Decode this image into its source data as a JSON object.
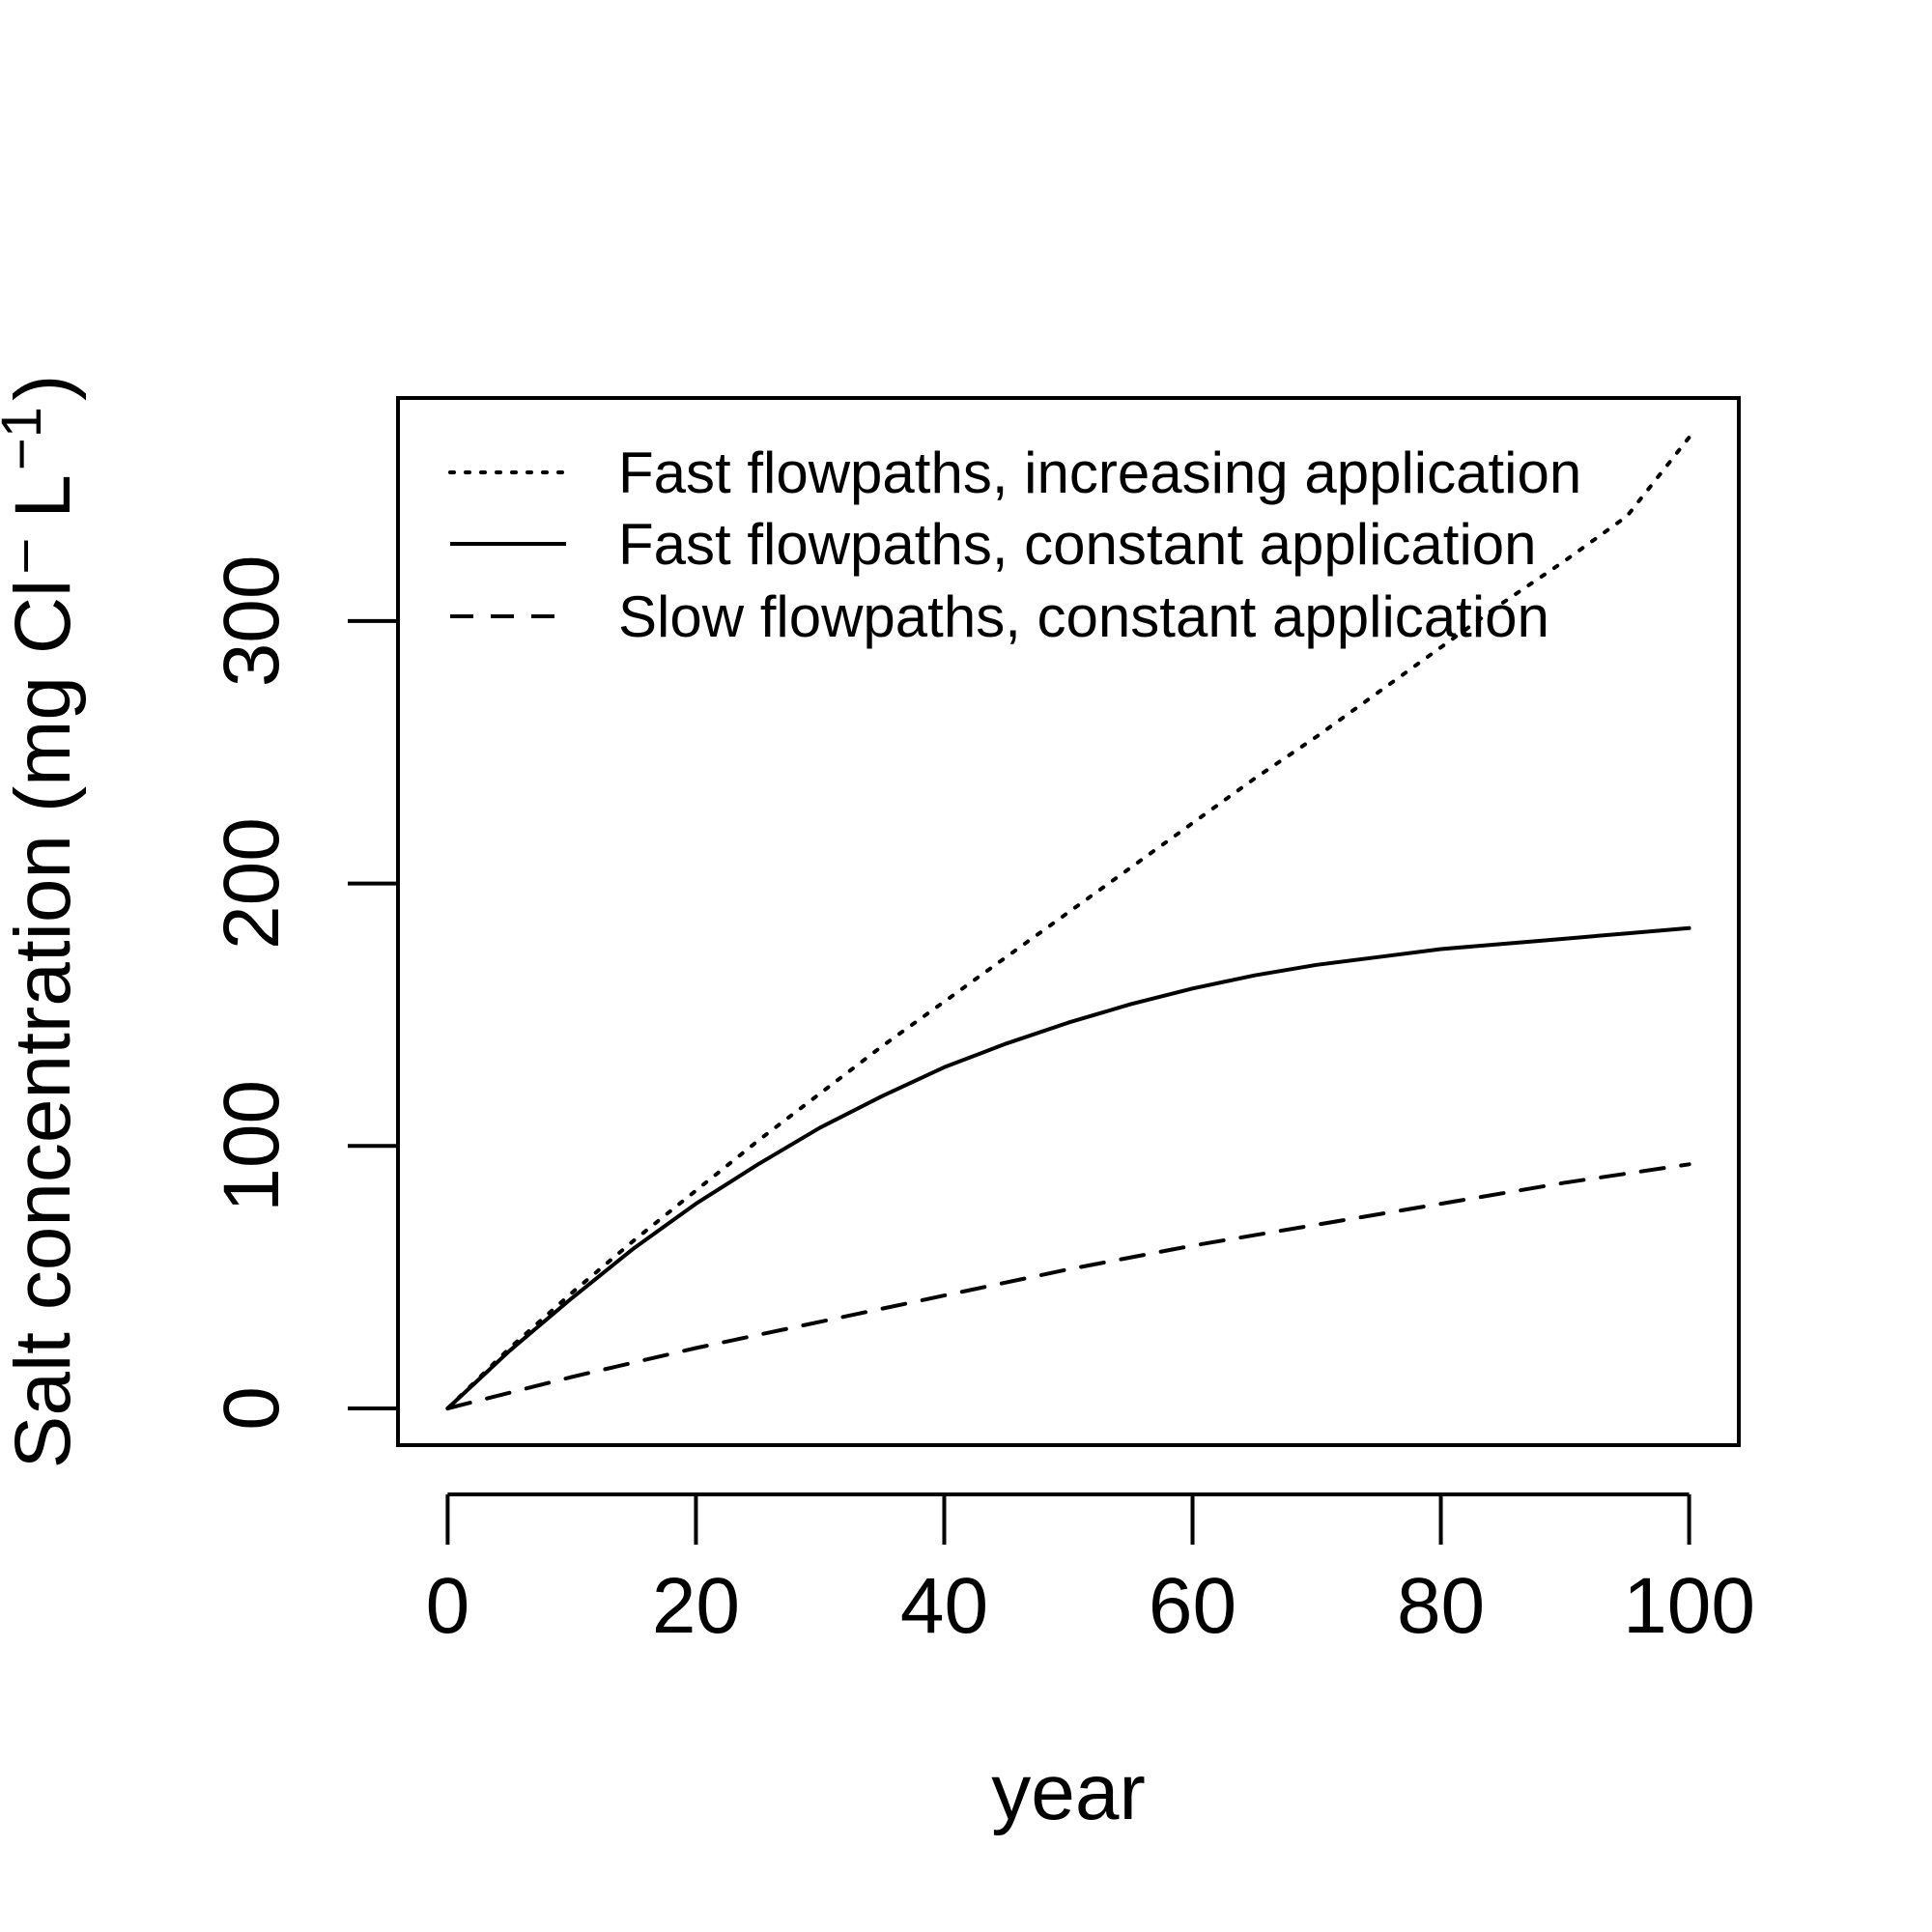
{
  "chart_data": {
    "type": "line",
    "title": "",
    "xlabel": "year",
    "ylabel": {
      "prefix": "Salt concentration (mg Cl",
      "sup1": "–",
      "mid": " L",
      "sup2": "−1",
      "suffix": ")"
    },
    "xlim": [
      0,
      100
    ],
    "ylim": [
      -14,
      385
    ],
    "xticks": [
      0,
      20,
      40,
      60,
      80,
      100
    ],
    "xtick_labels": [
      "0",
      "20",
      "40",
      "60",
      "80",
      "100"
    ],
    "yticks": [
      0,
      100,
      200,
      300
    ],
    "ytick_labels": [
      "0",
      "100",
      "200",
      "300"
    ],
    "grid": false,
    "legend_position": "top-left",
    "series": [
      {
        "name": "Fast flowpaths, increasing application",
        "line_style": "dotted",
        "x": [
          0,
          5,
          10,
          15,
          20,
          25,
          30,
          35,
          40,
          45,
          50,
          55,
          60,
          65,
          70,
          75,
          80,
          85,
          90,
          95,
          100
        ],
        "y": [
          0,
          23,
          44,
          64,
          83,
          102,
          120,
          138,
          155,
          172,
          189,
          206,
          223,
          240,
          256,
          273,
          290,
          307,
          323,
          340,
          370
        ]
      },
      {
        "name": "Fast flowpaths, constant application",
        "line_style": "solid",
        "x": [
          0,
          5,
          10,
          15,
          20,
          25,
          30,
          35,
          40,
          45,
          50,
          55,
          60,
          65,
          70,
          75,
          80,
          85,
          90,
          95,
          100
        ],
        "y": [
          0,
          22,
          42,
          61,
          78,
          93,
          107,
          119,
          130,
          139,
          147,
          154,
          160,
          165,
          169,
          172,
          175,
          177,
          179,
          181,
          183
        ]
      },
      {
        "name": "Slow flowpaths, constant application",
        "line_style": "dashed",
        "x": [
          0,
          10,
          20,
          30,
          40,
          50,
          60,
          70,
          80,
          90,
          100
        ],
        "y": [
          0,
          12,
          23,
          33,
          43,
          53,
          62,
          70,
          78,
          86,
          93
        ]
      }
    ]
  }
}
